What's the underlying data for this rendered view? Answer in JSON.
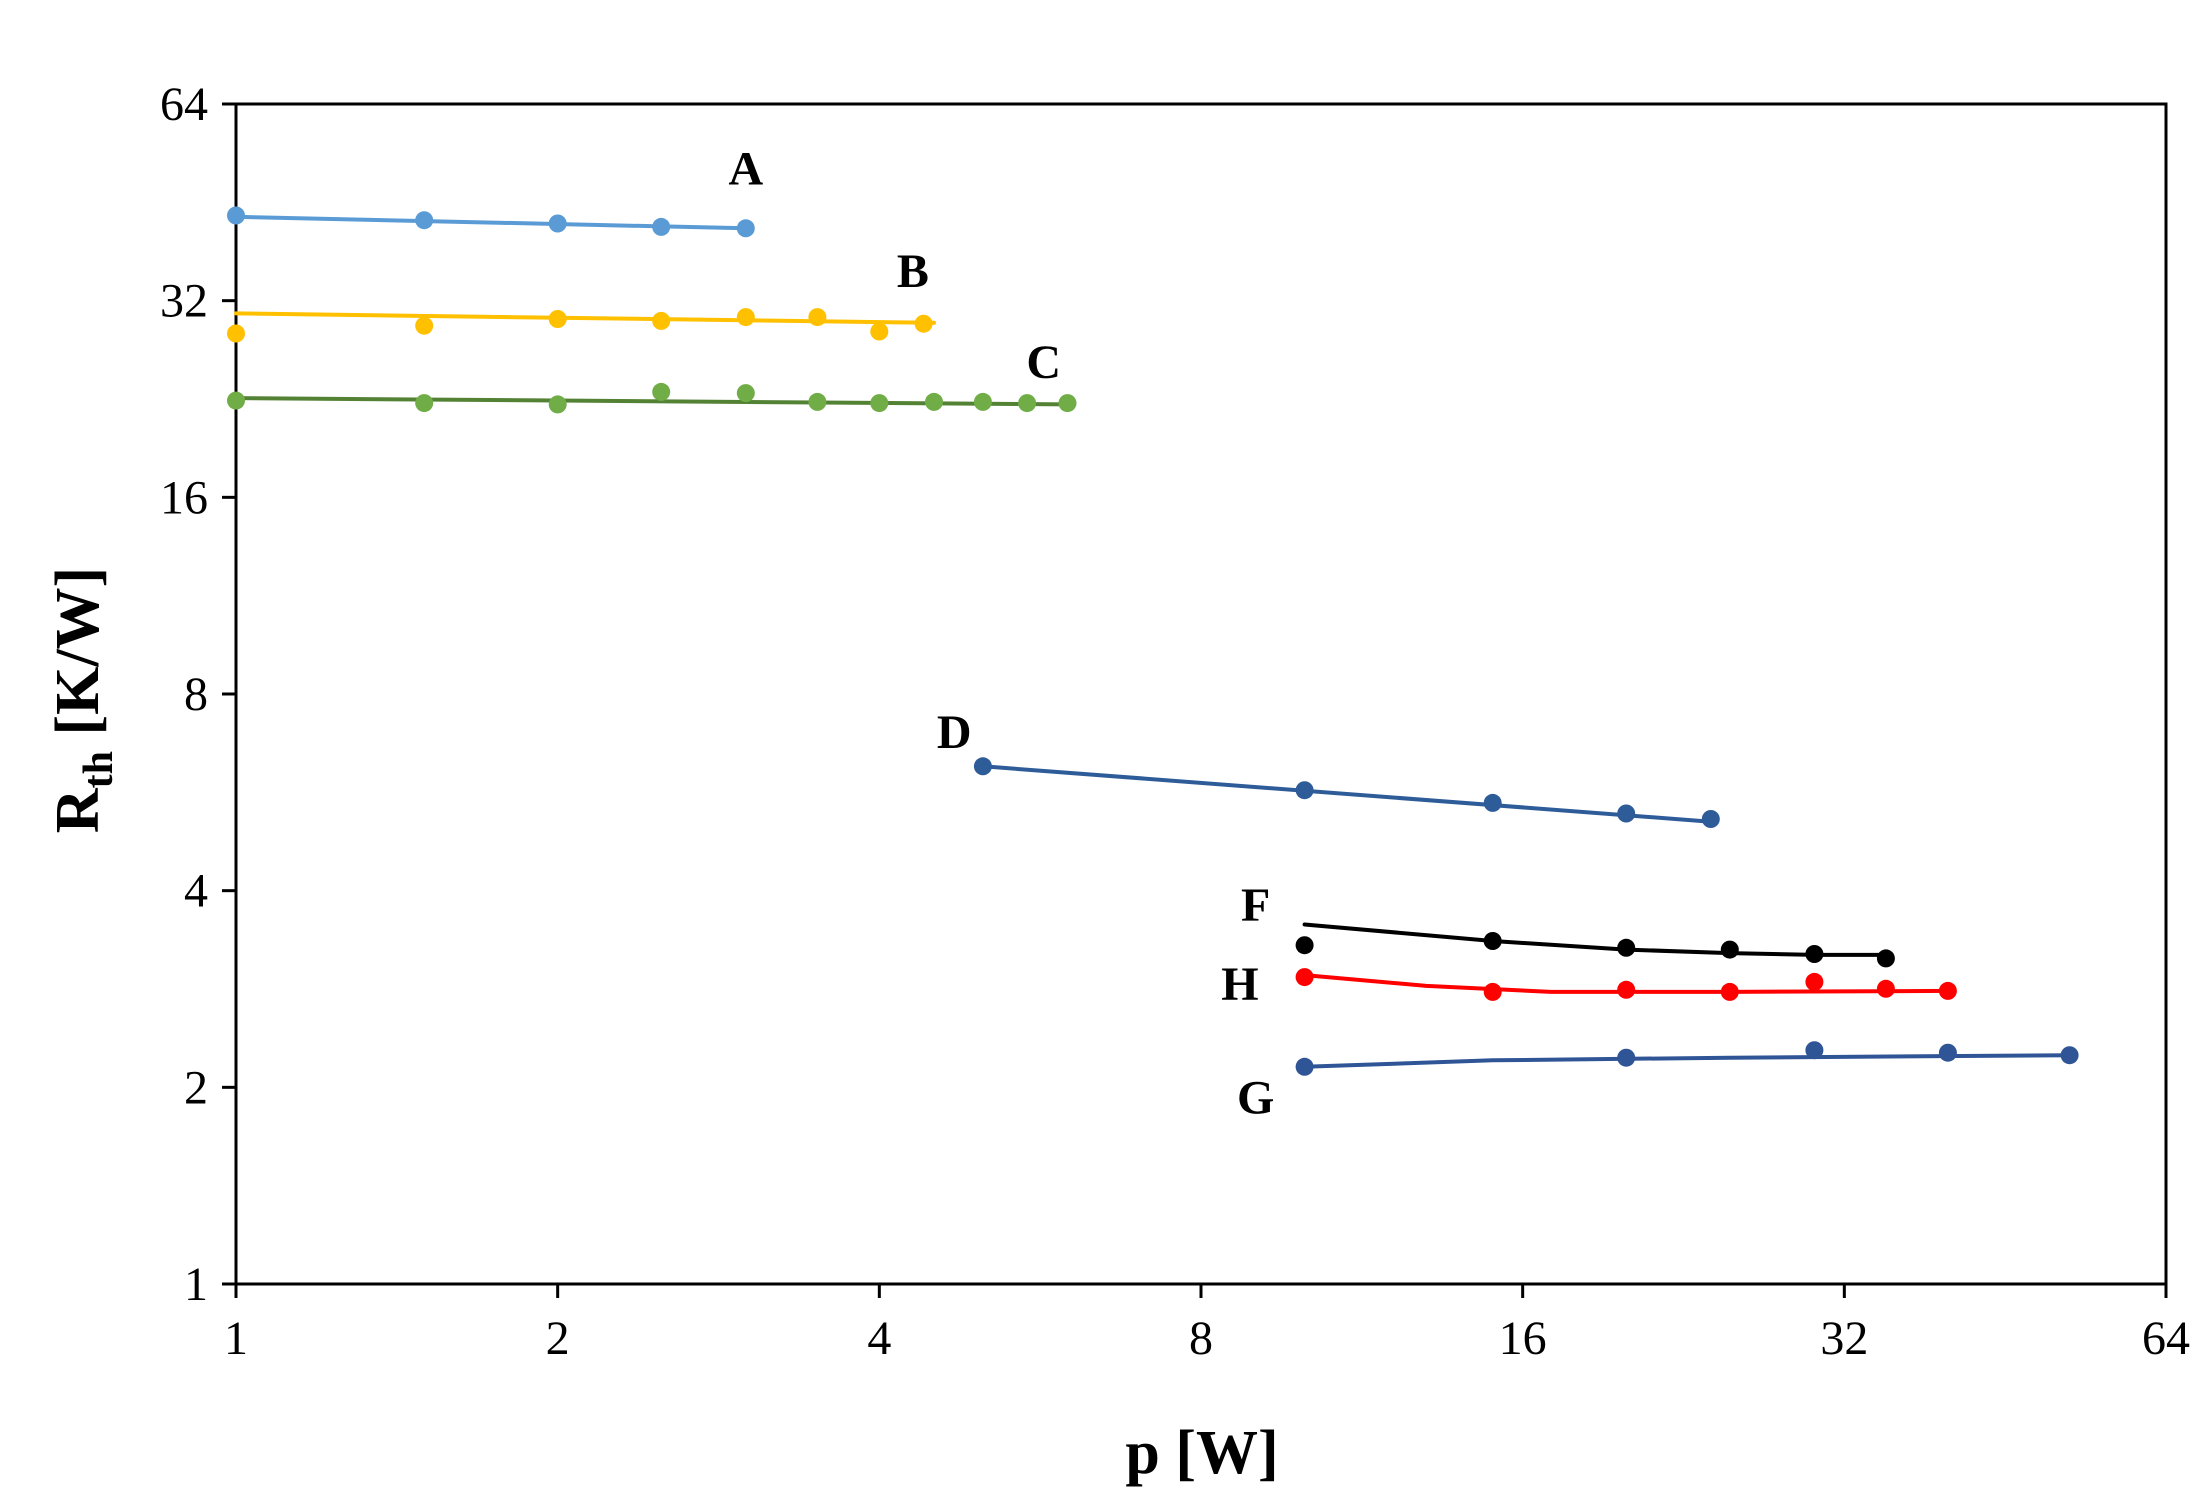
{
  "chart_data": {
    "type": "scatter",
    "title": "",
    "xlabel": "p [W]",
    "ylabel_main": "R",
    "ylabel_sub": "th",
    "ylabel_rest": " [K/W]",
    "xscale": "log2",
    "yscale": "log2",
    "xlim": [
      1,
      64
    ],
    "ylim": [
      1,
      64
    ],
    "xticks": [
      1,
      2,
      4,
      8,
      16,
      32,
      64
    ],
    "yticks": [
      1,
      2,
      4,
      8,
      16,
      32,
      64
    ],
    "grid": false,
    "legend": "none",
    "series": [
      {
        "name": "A",
        "color": "#5B9BD5",
        "points": [
          [
            1,
            43.2
          ],
          [
            1.5,
            42.5
          ],
          [
            2,
            42.0
          ],
          [
            2.5,
            41.5
          ],
          [
            3.0,
            41.3
          ]
        ],
        "trend": [
          [
            1,
            43.0
          ],
          [
            3.0,
            41.3
          ]
        ]
      },
      {
        "name": "B",
        "color": "#FFC000",
        "points": [
          [
            1,
            28.5
          ],
          [
            1.5,
            29.3
          ],
          [
            2,
            30.0
          ],
          [
            2.5,
            29.8
          ],
          [
            3.0,
            30.2
          ],
          [
            3.5,
            30.2
          ],
          [
            4.0,
            28.7
          ],
          [
            4.4,
            29.5
          ]
        ],
        "trend": [
          [
            1,
            30.6
          ],
          [
            4.5,
            29.6
          ]
        ]
      },
      {
        "name": "C",
        "color": "#70AD47",
        "trend_color": "#548235",
        "points": [
          [
            1,
            22.5
          ],
          [
            1.5,
            22.3
          ],
          [
            2,
            22.2
          ],
          [
            2.5,
            23.2
          ],
          [
            3.0,
            23.1
          ],
          [
            3.5,
            22.4
          ],
          [
            4.0,
            22.3
          ],
          [
            4.5,
            22.4
          ],
          [
            5.0,
            22.4
          ],
          [
            5.5,
            22.3
          ],
          [
            6.0,
            22.3
          ]
        ],
        "trend": [
          [
            1,
            22.7
          ],
          [
            6.0,
            22.2
          ]
        ]
      },
      {
        "name": "D",
        "color": "#2E5C99",
        "points": [
          [
            5,
            6.2
          ],
          [
            10,
            5.7
          ],
          [
            15,
            5.45
          ],
          [
            20,
            5.25
          ],
          [
            24,
            5.15
          ]
        ],
        "trend": [
          [
            5,
            6.2
          ],
          [
            24,
            5.1
          ]
        ]
      },
      {
        "name": "F",
        "color": "#000000",
        "points": [
          [
            10,
            3.3
          ],
          [
            15,
            3.35
          ],
          [
            20,
            3.27
          ],
          [
            25,
            3.25
          ],
          [
            30,
            3.2
          ],
          [
            35,
            3.15
          ]
        ],
        "trend": [
          [
            10,
            3.55
          ],
          [
            15,
            3.35
          ],
          [
            20,
            3.25
          ],
          [
            25,
            3.21
          ],
          [
            30,
            3.19
          ],
          [
            35,
            3.19
          ]
        ]
      },
      {
        "name": "H",
        "color": "#FF0000",
        "points": [
          [
            10,
            2.95
          ],
          [
            15,
            2.8
          ],
          [
            20,
            2.82
          ],
          [
            25,
            2.8
          ],
          [
            30,
            2.9
          ],
          [
            35,
            2.83
          ],
          [
            40,
            2.81
          ]
        ],
        "trend": [
          [
            10,
            2.97
          ],
          [
            13,
            2.86
          ],
          [
            17,
            2.8
          ],
          [
            25,
            2.8
          ],
          [
            40,
            2.81
          ]
        ]
      },
      {
        "name": "G",
        "color": "#2F5597",
        "points": [
          [
            10,
            2.15
          ],
          [
            20,
            2.22
          ],
          [
            30,
            2.28
          ],
          [
            40,
            2.26
          ],
          [
            52,
            2.24
          ]
        ],
        "trend": [
          [
            10,
            2.15
          ],
          [
            15,
            2.2
          ],
          [
            25,
            2.22
          ],
          [
            52,
            2.24
          ]
        ]
      }
    ],
    "annotations": [
      {
        "text": "A",
        "x": 3.0,
        "y": 51
      },
      {
        "text": "B",
        "x": 4.3,
        "y": 35.5
      },
      {
        "text": "C",
        "x": 5.7,
        "y": 25.8
      },
      {
        "text": "D",
        "x": 4.7,
        "y": 7.0
      },
      {
        "text": "F",
        "x": 9.0,
        "y": 3.8
      },
      {
        "text": "H",
        "x": 8.7,
        "y": 2.88
      },
      {
        "text": "G",
        "x": 9.0,
        "y": 1.93
      }
    ]
  }
}
